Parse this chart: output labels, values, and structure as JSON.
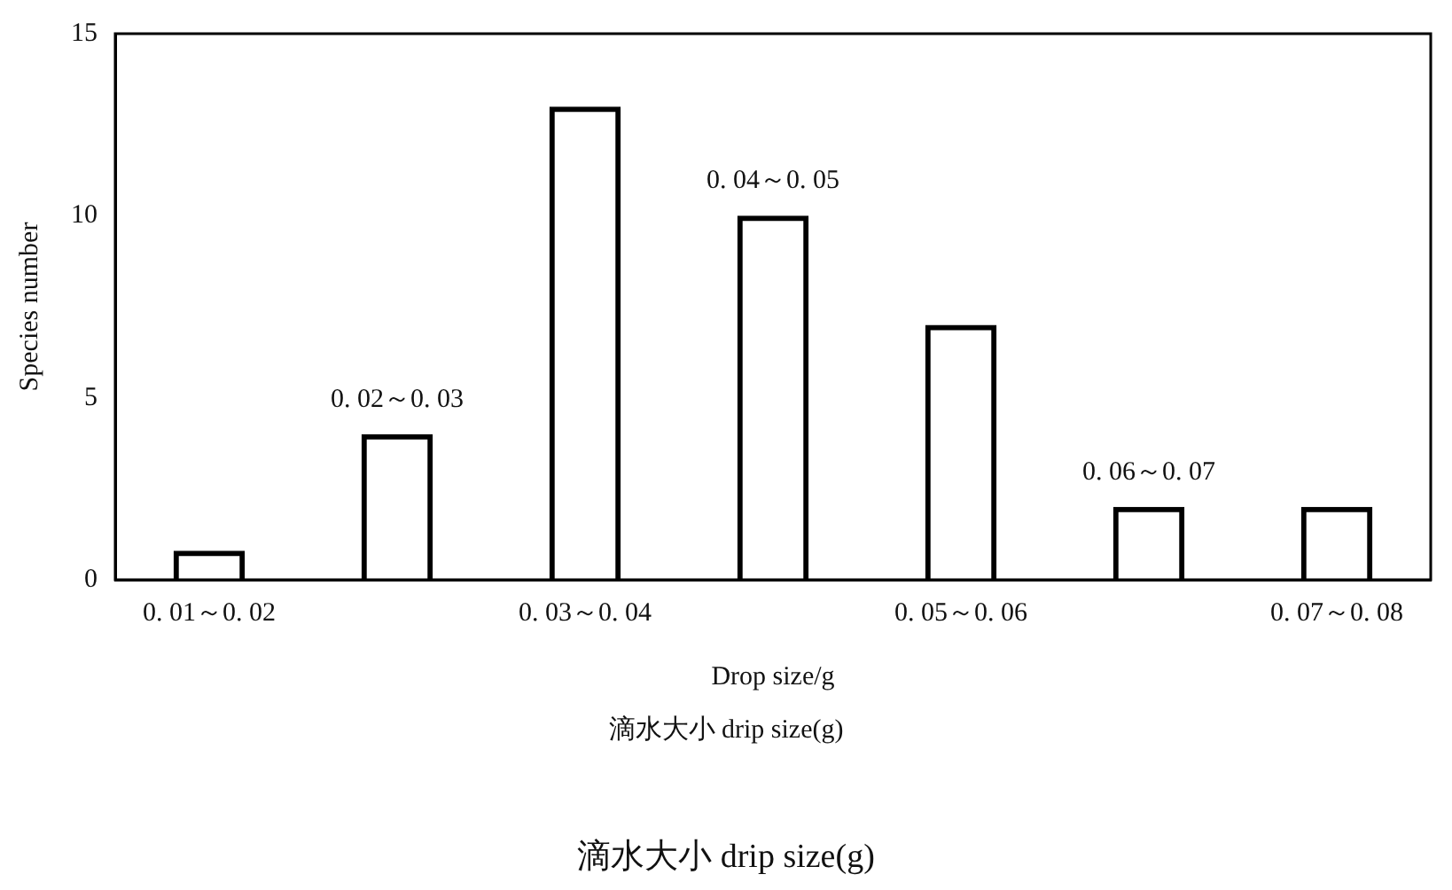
{
  "chart_data": {
    "type": "bar",
    "xlabel": "Drop size/g",
    "ylabel": "Species number",
    "categories": [
      "0. 01～0. 02",
      "0. 02～0. 03",
      "0. 03～0. 04",
      "0. 04～0. 05",
      "0. 05～0. 06",
      "0. 06～0. 07",
      "0. 07～0. 08"
    ],
    "values": [
      0.8,
      4,
      13,
      10,
      7,
      2,
      2
    ],
    "color": "#000000",
    "ylim": [
      0,
      15
    ],
    "yticks": [
      0,
      5,
      10,
      15
    ],
    "grid": false,
    "legend": false,
    "annotations": [
      "滴水大小 drip size(g)",
      "滴水大小 drip size(g)"
    ]
  }
}
